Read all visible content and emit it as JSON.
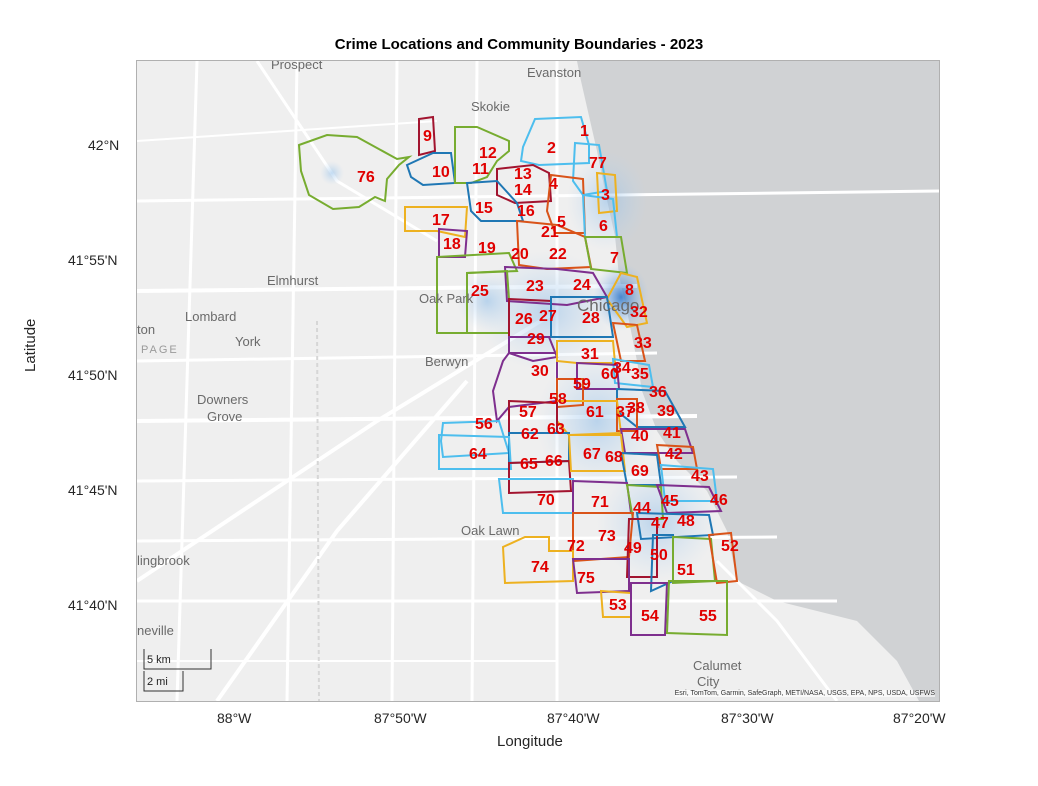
{
  "title": "Crime Locations and Community Boundaries - 2023",
  "xlabel": "Longitude",
  "ylabel": "Latitude",
  "x_ticks": [
    "88°W",
    "87°50'W",
    "87°40'W",
    "87°30'W",
    "87°20'W"
  ],
  "y_ticks": [
    "42°N",
    "41°55'N",
    "41°50'N",
    "41°45'N",
    "41°40'N"
  ],
  "places": [
    {
      "name": "Prospect",
      "id": "prospect"
    },
    {
      "name": "Evanston",
      "id": "evanston"
    },
    {
      "name": "Skokie",
      "id": "skokie"
    },
    {
      "name": "Elmhurst",
      "id": "elmhurst"
    },
    {
      "name": "Oak Park",
      "id": "oakpark"
    },
    {
      "name": "Lombard",
      "id": "lombard"
    },
    {
      "name": "York",
      "id": "york"
    },
    {
      "name": "Berwyn",
      "id": "berwyn"
    },
    {
      "name": "Downers",
      "id": "downers"
    },
    {
      "name": "Grove",
      "id": "grove"
    },
    {
      "name": "Oak Lawn",
      "id": "oaklawn"
    },
    {
      "name": "lingbrook",
      "id": "lingbrook"
    },
    {
      "name": "neville",
      "id": "neville"
    },
    {
      "name": "Calumet",
      "id": "calumet"
    },
    {
      "name": "City",
      "id": "city"
    },
    {
      "name": "Chicago",
      "id": "chicago"
    },
    {
      "name": "ton",
      "id": "ton"
    },
    {
      "name": "PAGE",
      "id": "page"
    }
  ],
  "community_labels": [
    "1",
    "2",
    "3",
    "4",
    "5",
    "6",
    "7",
    "8",
    "9",
    "10",
    "11",
    "12",
    "13",
    "14",
    "15",
    "16",
    "17",
    "18",
    "19",
    "20",
    "21",
    "22",
    "23",
    "24",
    "25",
    "26",
    "27",
    "28",
    "29",
    "30",
    "31",
    "32",
    "33",
    "34",
    "35",
    "36",
    "37",
    "38",
    "39",
    "40",
    "41",
    "42",
    "43",
    "44",
    "45",
    "46",
    "47",
    "48",
    "49",
    "50",
    "51",
    "52",
    "53",
    "54",
    "55",
    "56",
    "57",
    "58",
    "59",
    "60",
    "61",
    "62",
    "63",
    "64",
    "65",
    "66",
    "67",
    "68",
    "69",
    "70",
    "71",
    "72",
    "73",
    "74",
    "75",
    "76",
    "77"
  ],
  "scale": {
    "km": "5 km",
    "mi": "2 mi"
  },
  "attribution": "Esri, TomTom, Garmin, SafeGraph, METI/NASA, USGS, EPA, NPS, USDA, USFWS",
  "colors": {
    "lake": "#d0d2d4",
    "land": "#efefef",
    "road": "#ffffff",
    "label": "#e00000",
    "boundary_palette": [
      "#1f77b4",
      "#d95319",
      "#edb120",
      "#7e2f8e",
      "#77ac30",
      "#4dbeee",
      "#a2142f"
    ],
    "density": "#4a90d9"
  }
}
